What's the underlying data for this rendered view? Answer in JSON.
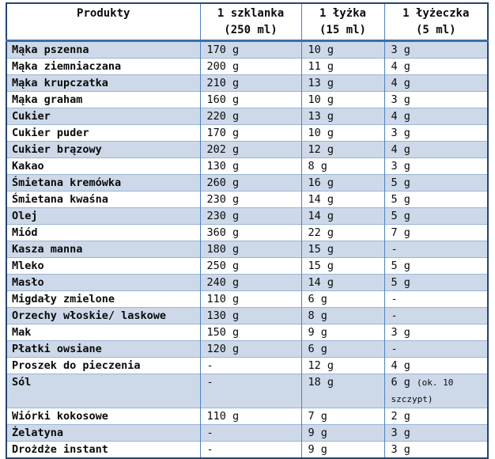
{
  "colors": {
    "band_row": "#cdd9e9",
    "outer_border": "#24456e",
    "vertical_border": "#4f81bd",
    "horizontal_border": "#9ab4d4",
    "header_rule": "#3c6da9",
    "text": "#0a0a0a"
  },
  "table": {
    "headers": [
      {
        "line1": "Produkty",
        "line2": ""
      },
      {
        "line1": "1 szklanka",
        "line2": "(250 ml)"
      },
      {
        "line1": "1 łyżka",
        "line2": "(15 ml)"
      },
      {
        "line1": "1 łyżeczka",
        "line2": "(5 ml)"
      }
    ],
    "rows": [
      {
        "product": "Mąka pszenna",
        "cup": "170 g",
        "tablespoon": "10 g",
        "teaspoon": "3 g"
      },
      {
        "product": "Mąka ziemniaczana",
        "cup": "200 g",
        "tablespoon": "11 g",
        "teaspoon": "4 g"
      },
      {
        "product": "Mąka krupczatka",
        "cup": "210 g",
        "tablespoon": "13 g",
        "teaspoon": "4 g"
      },
      {
        "product": "Mąka graham",
        "cup": "160 g",
        "tablespoon": "10 g",
        "teaspoon": "3 g"
      },
      {
        "product": "Cukier",
        "cup": "220 g",
        "tablespoon": "13 g",
        "teaspoon": "4 g"
      },
      {
        "product": "Cukier puder",
        "cup": "170 g",
        "tablespoon": "10 g",
        "teaspoon": "3 g"
      },
      {
        "product": "Cukier brązowy",
        "cup": "202 g",
        "tablespoon": "12 g",
        "teaspoon": "4 g"
      },
      {
        "product": "Kakao",
        "cup": "130 g",
        "tablespoon": "8 g",
        "teaspoon": "3 g"
      },
      {
        "product": "Śmietana kremówka",
        "cup": "260 g",
        "tablespoon": "16 g",
        "teaspoon": "5 g"
      },
      {
        "product": "Śmietana kwaśna",
        "cup": "230 g",
        "tablespoon": "14 g",
        "teaspoon": "5 g"
      },
      {
        "product": "Olej",
        "cup": "230 g",
        "tablespoon": "14 g",
        "teaspoon": "5 g"
      },
      {
        "product": "Miód",
        "cup": "360 g",
        "tablespoon": "22 g",
        "teaspoon": "7 g"
      },
      {
        "product": "Kasza manna",
        "cup": "180 g",
        "tablespoon": "15 g",
        "teaspoon": "-"
      },
      {
        "product": "Mleko",
        "cup": "250 g",
        "tablespoon": "15 g",
        "teaspoon": "5 g"
      },
      {
        "product": "Masło",
        "cup": "240 g",
        "tablespoon": "14 g",
        "teaspoon": "5 g"
      },
      {
        "product": "Migdały zmielone",
        "cup": "110 g",
        "tablespoon": "6 g",
        "teaspoon": "-"
      },
      {
        "product": "Orzechy włoskie/ laskowe",
        "cup": "130 g",
        "tablespoon": "8 g",
        "teaspoon": "-"
      },
      {
        "product": "Mak",
        "cup": "150 g",
        "tablespoon": "9 g",
        "teaspoon": "3 g"
      },
      {
        "product": "Płatki owsiane",
        "cup": "120 g",
        "tablespoon": "6 g",
        "teaspoon": "-"
      },
      {
        "product": "Proszek do pieczenia",
        "cup": "-",
        "tablespoon": "12 g",
        "teaspoon": "4 g"
      },
      {
        "product": "Sól",
        "cup": "-",
        "tablespoon": "18 g",
        "teaspoon": "6 g",
        "teaspoon_note": "(ok. 10 szczypt)"
      },
      {
        "product": "Wiórki kokosowe",
        "cup": "110 g",
        "tablespoon": "7 g",
        "teaspoon": "2 g"
      },
      {
        "product": "Żelatyna",
        "cup": "-",
        "tablespoon": "9 g",
        "teaspoon": "3 g"
      },
      {
        "product": "Drożdże instant",
        "cup": "-",
        "tablespoon": "9 g",
        "teaspoon": "3 g"
      }
    ]
  }
}
